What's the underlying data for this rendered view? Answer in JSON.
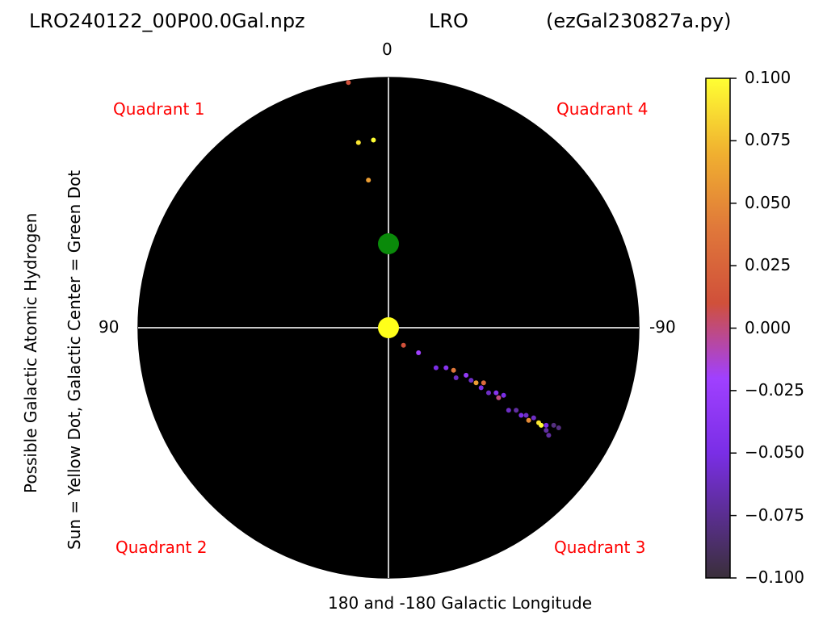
{
  "header": {
    "file": "LRO240122_00P00.0Gal.npz",
    "station": "LRO",
    "program": "(ezGal230827a.py)"
  },
  "angles": {
    "top": "0",
    "left": "90",
    "right": "-90",
    "bottom": "180 and -180 Galactic Longitude"
  },
  "quadrants": {
    "q1": "Quadrant 1",
    "q2": "Quadrant 2",
    "q3": "Quadrant 3",
    "q4": "Quadrant 4"
  },
  "ylabel": {
    "line1": "Possible Galactic Atomic Hydrogen",
    "line2": "Sun = Yellow Dot, Galactic Center = Green Dot"
  },
  "colors": {
    "background": "#000000",
    "axes_lines": "#c8c8c8",
    "quadrant_text": "#ff0000",
    "sun": "#ffff1a",
    "galactic_center": "#0a8a0a"
  },
  "chart_data": {
    "type": "scatter",
    "projection": "polar",
    "colormap": "gnuplot-like (dark → purple → red/orange → yellow)",
    "colorbar": {
      "min": -0.1,
      "max": 0.1,
      "ticks": [
        "0.100",
        "0.075",
        "0.050",
        "0.025",
        "0.000",
        "−0.025",
        "−0.050",
        "−0.075",
        "−0.100"
      ]
    },
    "markers": [
      {
        "label": "Sun",
        "color": "#ffff1a"
      },
      {
        "label": "Galactic Center",
        "color": "#0a8a0a"
      }
    ],
    "points": [
      {
        "x": -0.16,
        "y": 0.98,
        "v": 0.01
      },
      {
        "x": -0.12,
        "y": 0.74,
        "v": 0.09
      },
      {
        "x": -0.06,
        "y": 0.75,
        "v": 0.1
      },
      {
        "x": -0.08,
        "y": 0.59,
        "v": 0.06
      },
      {
        "x": 0.06,
        "y": -0.07,
        "v": 0.01
      },
      {
        "x": 0.12,
        "y": -0.1,
        "v": -0.02
      },
      {
        "x": 0.19,
        "y": -0.16,
        "v": -0.05
      },
      {
        "x": 0.23,
        "y": -0.16,
        "v": -0.04
      },
      {
        "x": 0.26,
        "y": -0.17,
        "v": 0.04
      },
      {
        "x": 0.27,
        "y": -0.2,
        "v": -0.06
      },
      {
        "x": 0.31,
        "y": -0.19,
        "v": -0.03
      },
      {
        "x": 0.33,
        "y": -0.21,
        "v": -0.06
      },
      {
        "x": 0.35,
        "y": -0.22,
        "v": 0.06
      },
      {
        "x": 0.37,
        "y": -0.24,
        "v": -0.05
      },
      {
        "x": 0.38,
        "y": -0.22,
        "v": 0.03
      },
      {
        "x": 0.4,
        "y": -0.26,
        "v": -0.06
      },
      {
        "x": 0.43,
        "y": -0.26,
        "v": -0.04
      },
      {
        "x": 0.44,
        "y": -0.28,
        "v": 0.0
      },
      {
        "x": 0.46,
        "y": -0.27,
        "v": -0.05
      },
      {
        "x": 0.48,
        "y": -0.33,
        "v": -0.06
      },
      {
        "x": 0.51,
        "y": -0.33,
        "v": -0.07
      },
      {
        "x": 0.53,
        "y": -0.35,
        "v": -0.05
      },
      {
        "x": 0.55,
        "y": -0.35,
        "v": -0.06
      },
      {
        "x": 0.56,
        "y": -0.37,
        "v": 0.05
      },
      {
        "x": 0.58,
        "y": -0.36,
        "v": -0.06
      },
      {
        "x": 0.6,
        "y": -0.38,
        "v": 0.09
      },
      {
        "x": 0.61,
        "y": -0.39,
        "v": 0.1
      },
      {
        "x": 0.63,
        "y": -0.39,
        "v": -0.05
      },
      {
        "x": 0.63,
        "y": -0.41,
        "v": -0.07
      },
      {
        "x": 0.66,
        "y": -0.39,
        "v": -0.08
      },
      {
        "x": 0.68,
        "y": -0.4,
        "v": -0.08
      },
      {
        "x": 0.64,
        "y": -0.43,
        "v": -0.07
      }
    ]
  }
}
